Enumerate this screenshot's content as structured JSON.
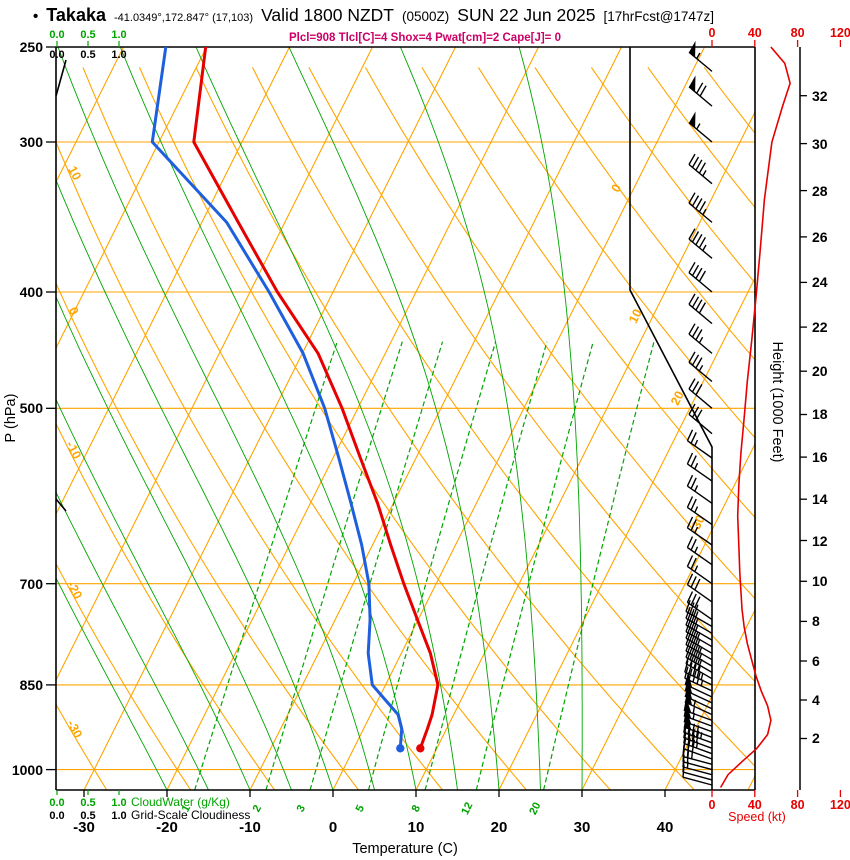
{
  "header": {
    "bullet": "•",
    "station": "Takaka",
    "coords": "-41.0349°,172.847° (17,103)",
    "valid": "Valid 1800 NZDT",
    "valid_z": "(0500Z)",
    "date": "SUN 22 Jun 2025",
    "fcst": "[17hrFcst@1747z]",
    "params": "Plcl=908 Tlcl[C]=4 Shox=4 Pwat[cm]=2 Cape[J]= 0"
  },
  "axes": {
    "pressure_title": "P (hPa)",
    "temperature_title": "Temperature (C)",
    "height_title": "Height (1000 Feet)",
    "speed_title": "Speed (kt)",
    "cloudwater_title": "CloudWater (g/Kg)",
    "cloudiness_title": "Grid-Scale Cloudiness",
    "cloud_scale": [
      "0.0",
      "0.5",
      "1.0"
    ],
    "pressure_ticks": [
      250,
      300,
      400,
      500,
      700,
      850,
      1000
    ],
    "temperature_ticks": [
      -30,
      -20,
      -10,
      0,
      10,
      20,
      30,
      40
    ],
    "height_ticks_kft": [
      2,
      4,
      6,
      8,
      10,
      12,
      14,
      16,
      18,
      20,
      22,
      24,
      26,
      28,
      30,
      32
    ],
    "speed_ticks_kt": [
      0,
      40,
      80,
      120
    ]
  },
  "chart_data": {
    "type": "line",
    "subtype": "skew-t log-p sounding",
    "station": "Takaka",
    "valid": "1800 NZDT (0500Z) SUN 22 Jun 2025",
    "indices": {
      "Plcl_hPa": 908,
      "Tlcl_C": 4,
      "Showalter": 4,
      "Pwat_cm": 2,
      "Cape_J": 0
    },
    "pressure_range_hpa": [
      250,
      1040
    ],
    "isotherms_c": {
      "min": -80,
      "max": 50,
      "step": 10
    },
    "dry_adiabats_c": {
      "min": -40,
      "max": 140,
      "step": 10
    },
    "moist_adiabats_c": [
      -20,
      -15,
      -10,
      -5,
      0,
      5,
      10,
      15,
      20,
      25,
      30
    ],
    "mixing_ratio_gkg": [
      1,
      2,
      3,
      5,
      8,
      12,
      20
    ],
    "isotherm_labels_right_c": [
      0,
      10,
      20,
      30
    ],
    "adiabat_labels_left_c": [
      10,
      0,
      -10,
      -20,
      -30
    ],
    "sounding": {
      "pressure_hpa": [
        960,
        925,
        900,
        850,
        800,
        750,
        700,
        650,
        600,
        550,
        500,
        450,
        400,
        350,
        300,
        250
      ],
      "temperature_c": [
        8.0,
        7.7,
        7.4,
        6.3,
        3.5,
        -0.1,
        -3.9,
        -7.8,
        -11.9,
        -16.7,
        -21.9,
        -28.1,
        -36.7,
        -45.6,
        -55.8,
        -60.1
      ],
      "dewpoint_c": [
        5.6,
        4.6,
        3.3,
        -1.6,
        -4.0,
        -5.8,
        -8.1,
        -11.3,
        -15.1,
        -19.3,
        -24.0,
        -29.9,
        -37.7,
        -47.0,
        -60.8,
        -64.9
      ]
    },
    "wind_speed_profile": {
      "pressure_hpa": [
        1035,
        1010,
        985,
        960,
        935,
        910,
        885,
        860,
        835,
        810,
        785,
        760,
        735,
        710,
        685,
        650,
        615,
        580,
        545,
        510,
        475,
        440,
        405,
        370,
        335,
        300,
        280,
        268,
        258,
        250
      ],
      "speed_kt": [
        8,
        15,
        28,
        42,
        52,
        55,
        52,
        46,
        41,
        37,
        33,
        30,
        28,
        27,
        26,
        25,
        24,
        25,
        27,
        30,
        33,
        37,
        41,
        45,
        49,
        56,
        66,
        73,
        68,
        55
      ]
    },
    "wind_barbs": [
      [
        1030,
        10,
        285
      ],
      [
        1020,
        10,
        285
      ],
      [
        1010,
        15,
        285
      ],
      [
        1000,
        20,
        285
      ],
      [
        990,
        25,
        285
      ],
      [
        980,
        30,
        290
      ],
      [
        970,
        35,
        290
      ],
      [
        960,
        40,
        290
      ],
      [
        950,
        45,
        290
      ],
      [
        940,
        50,
        290
      ],
      [
        930,
        50,
        290
      ],
      [
        920,
        55,
        290
      ],
      [
        910,
        55,
        290
      ],
      [
        900,
        55,
        295
      ],
      [
        890,
        50,
        295
      ],
      [
        880,
        50,
        295
      ],
      [
        870,
        50,
        295
      ],
      [
        860,
        45,
        295
      ],
      [
        850,
        45,
        295
      ],
      [
        840,
        40,
        300
      ],
      [
        830,
        40,
        300
      ],
      [
        820,
        40,
        300
      ],
      [
        810,
        35,
        300
      ],
      [
        800,
        35,
        300
      ],
      [
        790,
        35,
        300
      ],
      [
        780,
        30,
        300
      ],
      [
        770,
        30,
        300
      ],
      [
        760,
        30,
        300
      ],
      [
        750,
        30,
        305
      ],
      [
        725,
        30,
        305
      ],
      [
        700,
        25,
        305
      ],
      [
        675,
        25,
        305
      ],
      [
        650,
        25,
        305
      ],
      [
        625,
        25,
        305
      ],
      [
        600,
        25,
        305
      ],
      [
        575,
        25,
        305
      ],
      [
        550,
        25,
        305
      ],
      [
        525,
        30,
        310
      ],
      [
        500,
        30,
        310
      ],
      [
        475,
        35,
        310
      ],
      [
        450,
        35,
        310
      ],
      [
        425,
        40,
        310
      ],
      [
        400,
        40,
        310
      ],
      [
        375,
        45,
        310
      ],
      [
        350,
        45,
        310
      ],
      [
        325,
        45,
        310
      ],
      [
        300,
        55,
        310
      ],
      [
        280,
        70,
        310
      ],
      [
        262,
        55,
        310
      ]
    ]
  },
  "colors": {
    "grid": "#FFA500",
    "green": "#00A400",
    "temperature": "#E60000",
    "dewpoint": "#1E5FDE",
    "wind_speed": "#E60000",
    "params_text": "#CC0066",
    "barbs": "#000000"
  }
}
